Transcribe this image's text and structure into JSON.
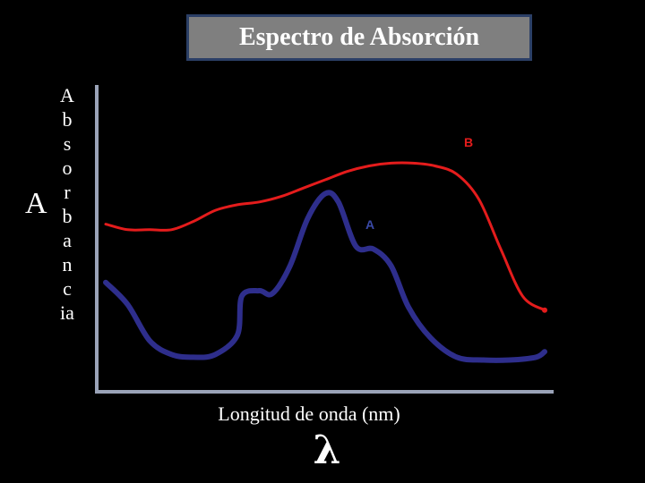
{
  "chart_data": {
    "type": "line",
    "title": "Espectro de Absorción",
    "ylabel_symbol": "A",
    "ylabel_letters": [
      "A",
      "b",
      "s",
      "o",
      "r",
      "b",
      "a",
      "n",
      "c",
      "ia"
    ],
    "xlabel": "Longitud de onda (nm)",
    "xlabel_symbol": "λ",
    "x_range": [
      0,
      100
    ],
    "y_range": [
      0,
      100
    ],
    "grid": false,
    "series": [
      {
        "name": "B",
        "color": "#e41c1c",
        "x": [
          0,
          5,
          10,
          15,
          20,
          25,
          30,
          35,
          40,
          45,
          50,
          55,
          60,
          65,
          70,
          75,
          80,
          85,
          90,
          95,
          100
        ],
        "y": [
          54,
          52,
          52,
          52,
          55,
          59,
          61,
          62,
          64,
          67,
          70,
          73,
          75,
          76,
          76,
          75,
          72,
          63,
          45,
          28,
          23
        ]
      },
      {
        "name": "A",
        "color": "#2e2e8c",
        "x": [
          0,
          5,
          10,
          15,
          20,
          25,
          30,
          31,
          35,
          38,
          42,
          46,
          50,
          53,
          57,
          61,
          65,
          69,
          74,
          80,
          86,
          92,
          98,
          100
        ],
        "y": [
          33,
          25,
          12,
          7,
          6,
          7,
          14,
          28,
          30,
          29,
          39,
          56,
          65,
          62,
          46,
          45,
          39,
          24,
          13,
          6,
          5,
          5,
          6,
          8
        ]
      }
    ]
  }
}
